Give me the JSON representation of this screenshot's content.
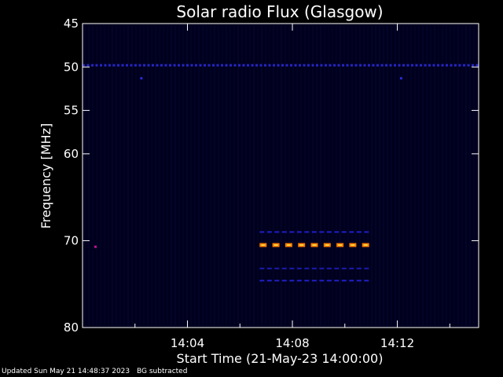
{
  "chart_data": {
    "type": "heatmap",
    "title": "Solar radio Flux (Glasgow)",
    "xlabel": "Start Time (21-May-23 14:00:00)",
    "ylabel": "Frequency [MHz]",
    "xlim_minutes": [
      0,
      15.1
    ],
    "ylim": [
      45,
      80
    ],
    "x_ticks": [
      {
        "minutes": 4,
        "label": "14:04"
      },
      {
        "minutes": 8,
        "label": "14:08"
      },
      {
        "minutes": 12,
        "label": "14:12"
      }
    ],
    "y_ticks": [
      {
        "value": 45,
        "label": "45"
      },
      {
        "value": 50,
        "label": "50"
      },
      {
        "value": 55,
        "label": "55"
      },
      {
        "value": 60,
        "label": "60"
      },
      {
        "value": 70,
        "label": "70"
      },
      {
        "value": 80,
        "label": "80"
      }
    ],
    "features": [
      {
        "name": "background band",
        "freq": 49.8,
        "start": 0.0,
        "end": 15.1,
        "color": "#2626c8",
        "style": "dots"
      },
      {
        "name": "background dot",
        "freq": 51.3,
        "start": 2.2,
        "end": 2.3,
        "color": "#2a2ad8",
        "style": "dots"
      },
      {
        "name": "background dot",
        "freq": 51.3,
        "start": 12.1,
        "end": 12.2,
        "color": "#2a2ad8",
        "style": "dots"
      },
      {
        "name": "emission",
        "freq": 70.5,
        "start": 6.75,
        "end": 11.1,
        "color": "#ff7a00",
        "style": "dashes"
      },
      {
        "name": "emission halo",
        "freq": 69.0,
        "start": 6.75,
        "end": 11.1,
        "color": "#1e1ec8",
        "style": "dashes"
      },
      {
        "name": "emission halo",
        "freq": 73.2,
        "start": 6.75,
        "end": 11.1,
        "color": "#1a1ab0",
        "style": "dashes"
      },
      {
        "name": "emission halo",
        "freq": 74.6,
        "start": 6.75,
        "end": 11.1,
        "color": "#2020c8",
        "style": "dashes"
      },
      {
        "name": "edge spot",
        "freq": 70.7,
        "start": 0.45,
        "end": 0.6,
        "color": "#c01090",
        "style": "dots"
      }
    ]
  },
  "footer": {
    "updated": "Updated Sun May 21 14:48:37 2023",
    "bg": "BG subtracted"
  }
}
